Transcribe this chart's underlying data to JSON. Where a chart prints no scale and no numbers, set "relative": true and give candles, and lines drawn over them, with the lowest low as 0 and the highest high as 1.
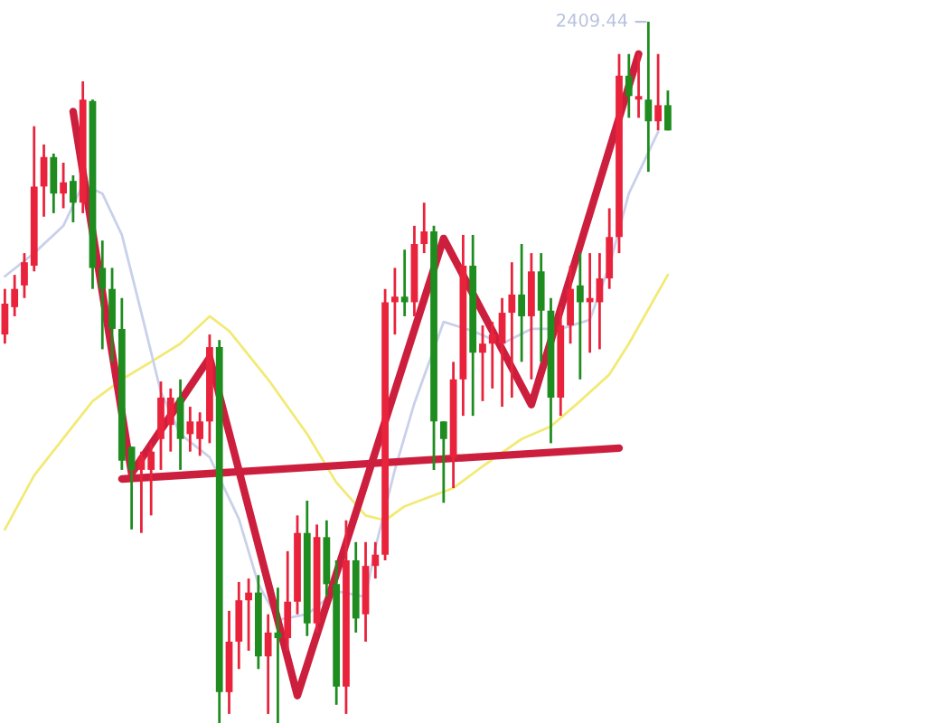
{
  "chart_data": {
    "type": "candlestick",
    "relative": true,
    "categories": [
      null,
      null,
      null,
      null,
      null,
      null,
      null,
      null,
      null,
      null,
      null,
      null,
      null,
      null,
      null,
      null,
      null,
      null,
      null,
      null,
      null,
      null,
      null,
      null,
      null,
      null,
      null,
      null,
      null,
      null,
      null,
      null,
      null,
      null,
      null,
      null,
      null,
      null,
      null,
      null,
      null,
      null,
      null,
      null,
      null,
      null,
      null,
      null,
      null,
      null,
      null,
      null,
      null,
      null,
      null,
      null,
      null,
      null,
      null,
      null,
      null,
      null,
      null,
      null,
      null,
      null,
      null,
      null,
      null
    ],
    "ohlc": [
      [
        0.554,
        0.619,
        0.541,
        0.598
      ],
      [
        0.593,
        0.639,
        0.58,
        0.619
      ],
      [
        0.624,
        0.67,
        0.606,
        0.657
      ],
      [
        0.652,
        0.851,
        0.644,
        0.765
      ],
      [
        0.765,
        0.825,
        0.722,
        0.807
      ],
      [
        0.807,
        0.812,
        0.727,
        0.755
      ],
      [
        0.755,
        0.799,
        0.734,
        0.771
      ],
      [
        0.773,
        0.781,
        0.714,
        0.742
      ],
      [
        0.742,
        0.915,
        0.727,
        0.889
      ],
      [
        0.887,
        0.889,
        0.619,
        0.649
      ],
      [
        0.649,
        0.688,
        0.533,
        0.619
      ],
      [
        0.619,
        0.649,
        0.515,
        0.562
      ],
      [
        0.562,
        0.606,
        0.361,
        0.374
      ],
      [
        0.394,
        0.394,
        0.276,
        0.361
      ],
      [
        0.361,
        0.387,
        0.271,
        0.379
      ],
      [
        0.361,
        0.399,
        0.296,
        0.387
      ],
      [
        0.405,
        0.487,
        0.361,
        0.464
      ],
      [
        0.425,
        0.477,
        0.387,
        0.464
      ],
      [
        0.464,
        0.49,
        0.361,
        0.405
      ],
      [
        0.412,
        0.451,
        0.387,
        0.43
      ],
      [
        0.405,
        0.443,
        0.381,
        0.43
      ],
      [
        0.43,
        0.554,
        0.399,
        0.536
      ],
      [
        0.536,
        0.546,
        0,
        0.044
      ],
      [
        0.044,
        0.16,
        0.013,
        0.116
      ],
      [
        0.116,
        0.201,
        0.077,
        0.175
      ],
      [
        0.175,
        0.206,
        0.103,
        0.186
      ],
      [
        0.186,
        0.211,
        0.077,
        0.095
      ],
      [
        0.095,
        0.155,
        0.013,
        0.129
      ],
      [
        0.129,
        0.193,
        0,
        0.121
      ],
      [
        0.121,
        0.245,
        0.103,
        0.173
      ],
      [
        0.173,
        0.296,
        0.155,
        0.271
      ],
      [
        0.271,
        0.317,
        0.124,
        0.142
      ],
      [
        0.142,
        0.283,
        0.129,
        0.265
      ],
      [
        0.265,
        0.289,
        0.18,
        0.198
      ],
      [
        0.198,
        0.232,
        0.026,
        0.052
      ],
      [
        0.052,
        0.289,
        0.013,
        0.232
      ],
      [
        0.232,
        0.258,
        0.129,
        0.149
      ],
      [
        0.155,
        0.258,
        0.116,
        0.224
      ],
      [
        0.224,
        0.258,
        0.206,
        0.24
      ],
      [
        0.24,
        0.619,
        0.232,
        0.6
      ],
      [
        0.6,
        0.649,
        0.554,
        0.608
      ],
      [
        0.608,
        0.675,
        0.58,
        0.6
      ],
      [
        0.6,
        0.709,
        0.58,
        0.683
      ],
      [
        0.683,
        0.742,
        0.67,
        0.701
      ],
      [
        0.701,
        0.709,
        0.361,
        0.43
      ],
      [
        0.43,
        0.43,
        0.314,
        0.405
      ],
      [
        0.379,
        0.515,
        0.335,
        0.49
      ],
      [
        0.49,
        0.696,
        0.438,
        0.652
      ],
      [
        0.652,
        0.696,
        0.438,
        0.528
      ],
      [
        0.528,
        0.567,
        0.459,
        0.541
      ],
      [
        0.541,
        0.572,
        0.477,
        0.554
      ],
      [
        0.541,
        0.606,
        0.451,
        0.585
      ],
      [
        0.585,
        0.657,
        0.464,
        0.611
      ],
      [
        0.611,
        0.683,
        0.515,
        0.58
      ],
      [
        0.58,
        0.67,
        0.49,
        0.644
      ],
      [
        0.644,
        0.67,
        0.515,
        0.588
      ],
      [
        0.588,
        0.606,
        0.399,
        0.464
      ],
      [
        0.464,
        0.593,
        0.438,
        0.567
      ],
      [
        0.567,
        0.652,
        0.541,
        0.619
      ],
      [
        0.624,
        0.67,
        0.49,
        0.6
      ],
      [
        0.6,
        0.67,
        0.528,
        0.606
      ],
      [
        0.6,
        0.67,
        0.533,
        0.634
      ],
      [
        0.634,
        0.734,
        0.619,
        0.693
      ],
      [
        0.693,
        0.954,
        0.67,
        0.923
      ],
      [
        0.923,
        0.954,
        0.863,
        0.894
      ],
      [
        0.889,
        0.954,
        0.863,
        0.894
      ],
      [
        0.889,
        1.0,
        0.786,
        0.858
      ],
      [
        0.858,
        0.954,
        0.845,
        0.881
      ],
      [
        0.881,
        0.902,
        0.845,
        0.845
      ]
    ],
    "colors": [
      "#e8233b",
      "#e8233b",
      "#e8233b",
      "#e8233b",
      "#e8233b",
      "#1e8c1e",
      "#e8233b",
      "#1e8c1e",
      "#e8233b",
      "#1e8c1e",
      "#1e8c1e",
      "#1e8c1e",
      "#1e8c1e",
      "#1e8c1e",
      "#e8233b",
      "#e8233b",
      "#e8233b",
      "#e8233b",
      "#1e8c1e",
      "#e8233b",
      "#e8233b",
      "#e8233b",
      "#1e8c1e",
      "#e8233b",
      "#e8233b",
      "#e8233b",
      "#1e8c1e",
      "#e8233b",
      "#1e8c1e",
      "#e8233b",
      "#e8233b",
      "#1e8c1e",
      "#e8233b",
      "#1e8c1e",
      "#1e8c1e",
      "#e8233b",
      "#1e8c1e",
      "#e8233b",
      "#e8233b",
      "#e8233b",
      "#e8233b",
      "#1e8c1e",
      "#e8233b",
      "#e8233b",
      "#1e8c1e",
      "#1e8c1e",
      "#e8233b",
      "#e8233b",
      "#1e8c1e",
      "#e8233b",
      "#e8233b",
      "#e8233b",
      "#e8233b",
      "#1e8c1e",
      "#e8233b",
      "#1e8c1e",
      "#1e8c1e",
      "#e8233b",
      "#e8233b",
      "#1e8c1e",
      "#e8233b",
      "#e8233b",
      "#e8233b",
      "#e8233b",
      "#1e8c1e",
      "#e8233b",
      "#1e8c1e",
      "#e8233b",
      "#1e8c1e"
    ],
    "series": [
      {
        "type": "line",
        "color": "#f2ea74",
        "values": [
          0.276,
          null,
          null,
          0.353,
          null,
          null,
          null,
          null,
          null,
          0.459,
          null,
          null,
          0.49,
          null,
          null,
          0.515,
          null,
          null,
          0.541,
          null,
          null,
          0.58,
          null,
          0.559,
          null,
          null,
          null,
          0.49,
          null,
          null,
          null,
          0.412,
          null,
          null,
          0.343,
          null,
          null,
          0.296,
          null,
          0.289,
          null,
          0.309,
          null,
          null,
          null,
          null,
          0.335,
          null,
          null,
          0.366,
          null,
          null,
          null,
          0.405,
          null,
          null,
          0.423,
          null,
          null,
          0.459,
          null,
          null,
          0.497,
          null,
          0.541,
          null,
          null,
          null,
          0.639
        ]
      },
      {
        "type": "line",
        "color": "#c9d0ea",
        "values": [
          0.637,
          null,
          null,
          0.67,
          null,
          null,
          0.709,
          null,
          0.768,
          null,
          0.755,
          null,
          0.696,
          null,
          0.585,
          null,
          0.472,
          null,
          0.412,
          null,
          null,
          0.379,
          null,
          null,
          0.291,
          null,
          0.198,
          null,
          0.147,
          null,
          null,
          0.155,
          null,
          null,
          0.188,
          null,
          null,
          0.18,
          0.25,
          null,
          0.361,
          null,
          0.456,
          null,
          null,
          0.572,
          null,
          null,
          0.559,
          null,
          null,
          0.541,
          null,
          null,
          0.562,
          null,
          null,
          0.562,
          null,
          null,
          0.575,
          null,
          0.652,
          null,
          0.755,
          null,
          null,
          0.843,
          null
        ]
      },
      {
        "type": "line",
        "color": "#cc1f3e",
        "values": [
          null,
          null,
          null,
          null,
          null,
          null,
          null,
          0.872,
          null,
          null,
          null,
          null,
          null,
          0.356,
          null,
          null,
          null,
          null,
          null,
          null,
          null,
          0.521,
          null,
          null,
          null,
          null,
          null,
          null,
          null,
          null,
          0.039,
          null,
          null,
          null,
          null,
          null,
          null,
          null,
          null,
          null,
          null,
          null,
          null,
          null,
          null,
          0.691,
          null,
          null,
          null,
          null,
          null,
          null,
          null,
          null,
          0.454,
          null,
          null,
          null,
          null,
          null,
          null,
          null,
          null,
          null,
          null,
          0.954,
          null,
          null,
          null
        ]
      },
      {
        "type": "line",
        "color": "#cc1f3e",
        "values": [
          null,
          null,
          null,
          null,
          null,
          null,
          null,
          null,
          null,
          null,
          null,
          null,
          0.348,
          null,
          null,
          null,
          null,
          null,
          null,
          null,
          null,
          null,
          null,
          null,
          null,
          null,
          null,
          null,
          null,
          null,
          null,
          null,
          null,
          null,
          null,
          null,
          null,
          null,
          null,
          null,
          null,
          null,
          null,
          null,
          null,
          null,
          null,
          null,
          null,
          null,
          null,
          null,
          null,
          null,
          null,
          null,
          null,
          null,
          null,
          null,
          null,
          null,
          null,
          0.392,
          null,
          null,
          null,
          null,
          null
        ]
      }
    ],
    "annotations": [
      "2409.44"
    ]
  }
}
